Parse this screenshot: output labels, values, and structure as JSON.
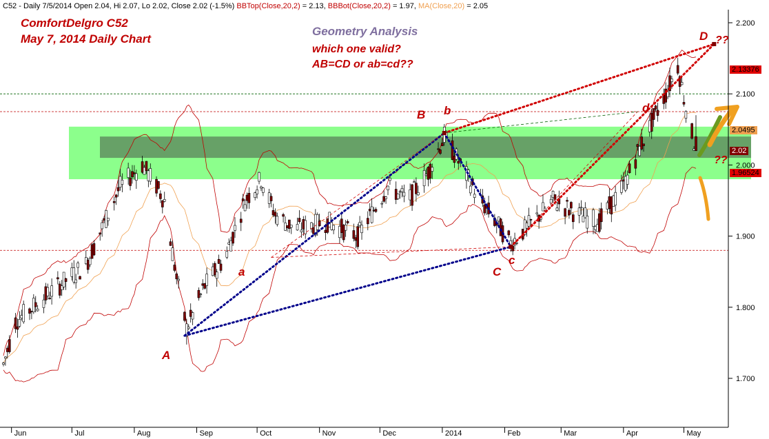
{
  "header": {
    "prefix": "C52 - Daily 7/5/2014 Open 2.04, Hi 2.07, Lo 2.02, Close 2.02 (-1.5%)",
    "bbtop_label": "BBTop(Close,20,2)",
    "bbtop_value": "= 2.13,",
    "bbbot_label": "BBBot(Close,20,2)",
    "bbbot_value": "= 1.97,",
    "ma_label": "MA(Close,20)",
    "ma_value": "= 2.05"
  },
  "annotations": {
    "title1": "ComfortDelgro C52",
    "title2": "May 7, 2014 Daily Chart",
    "geometry": "Geometry Analysis",
    "question1": "which one valid?",
    "question2": "AB=CD or ab=cd??",
    "qmarks1": "??",
    "qmarks2": "??"
  },
  "points": {
    "A": "A",
    "a": "a",
    "B": "B",
    "b": "b",
    "C": "C",
    "c": "c",
    "D": "D",
    "d": "d"
  },
  "price_tags": {
    "bbtop": "2.13376",
    "ma": "2.0495",
    "close": "2.02",
    "bbbot": "1.96524"
  },
  "colors": {
    "up_candle": "#ffffff",
    "down_candle": "#800000",
    "bollinger": "#c00000",
    "ma": "#f0a050",
    "pattern_blue": "#00008b",
    "pattern_red": "#d00000",
    "zone_green": "#80ff80",
    "zone_dark": "#609060"
  },
  "chart_data": {
    "type": "candlestick",
    "ylim": [
      1.62,
      2.22
    ],
    "y_ticks": [
      "2.200",
      "2.100",
      "2.000",
      "1.900",
      "1.800",
      "1.700"
    ],
    "x_ticks": [
      "Jun",
      "Jul",
      "Aug",
      "Sep",
      "Oct",
      "Nov",
      "Dec",
      "2014",
      "Feb",
      "Mar",
      "Apr",
      "May"
    ],
    "last_bar": {
      "date": "7/5/2014",
      "open": 2.04,
      "high": 2.07,
      "low": 2.02,
      "close": 2.02
    },
    "bbtop_last": 2.13376,
    "ma_last": 2.0495,
    "bbbot_last": 1.96524,
    "pattern_points": [
      {
        "label": "A",
        "date": "2013-08-26",
        "price": 1.76
      },
      {
        "label": "B",
        "date": "2014-01-02",
        "price": 2.045
      },
      {
        "label": "C",
        "date": "2014-02-04",
        "price": 1.885
      },
      {
        "label": "D",
        "date": "2014-05-16",
        "price": 2.17
      },
      {
        "label": "a",
        "date": "2013-10-08",
        "price": 1.87
      },
      {
        "label": "b",
        "date": "2014-01-02",
        "price": 2.045
      },
      {
        "label": "c",
        "date": "2014-02-04",
        "price": 1.885
      },
      {
        "label": "d",
        "date": "2014-04-08",
        "price": 2.075
      }
    ],
    "resistance_zone_price": [
      1.98,
      2.05
    ],
    "dark_zone_price": [
      2.01,
      2.04
    ],
    "horizontal_levels": [
      2.1,
      2.075,
      1.88
    ]
  }
}
